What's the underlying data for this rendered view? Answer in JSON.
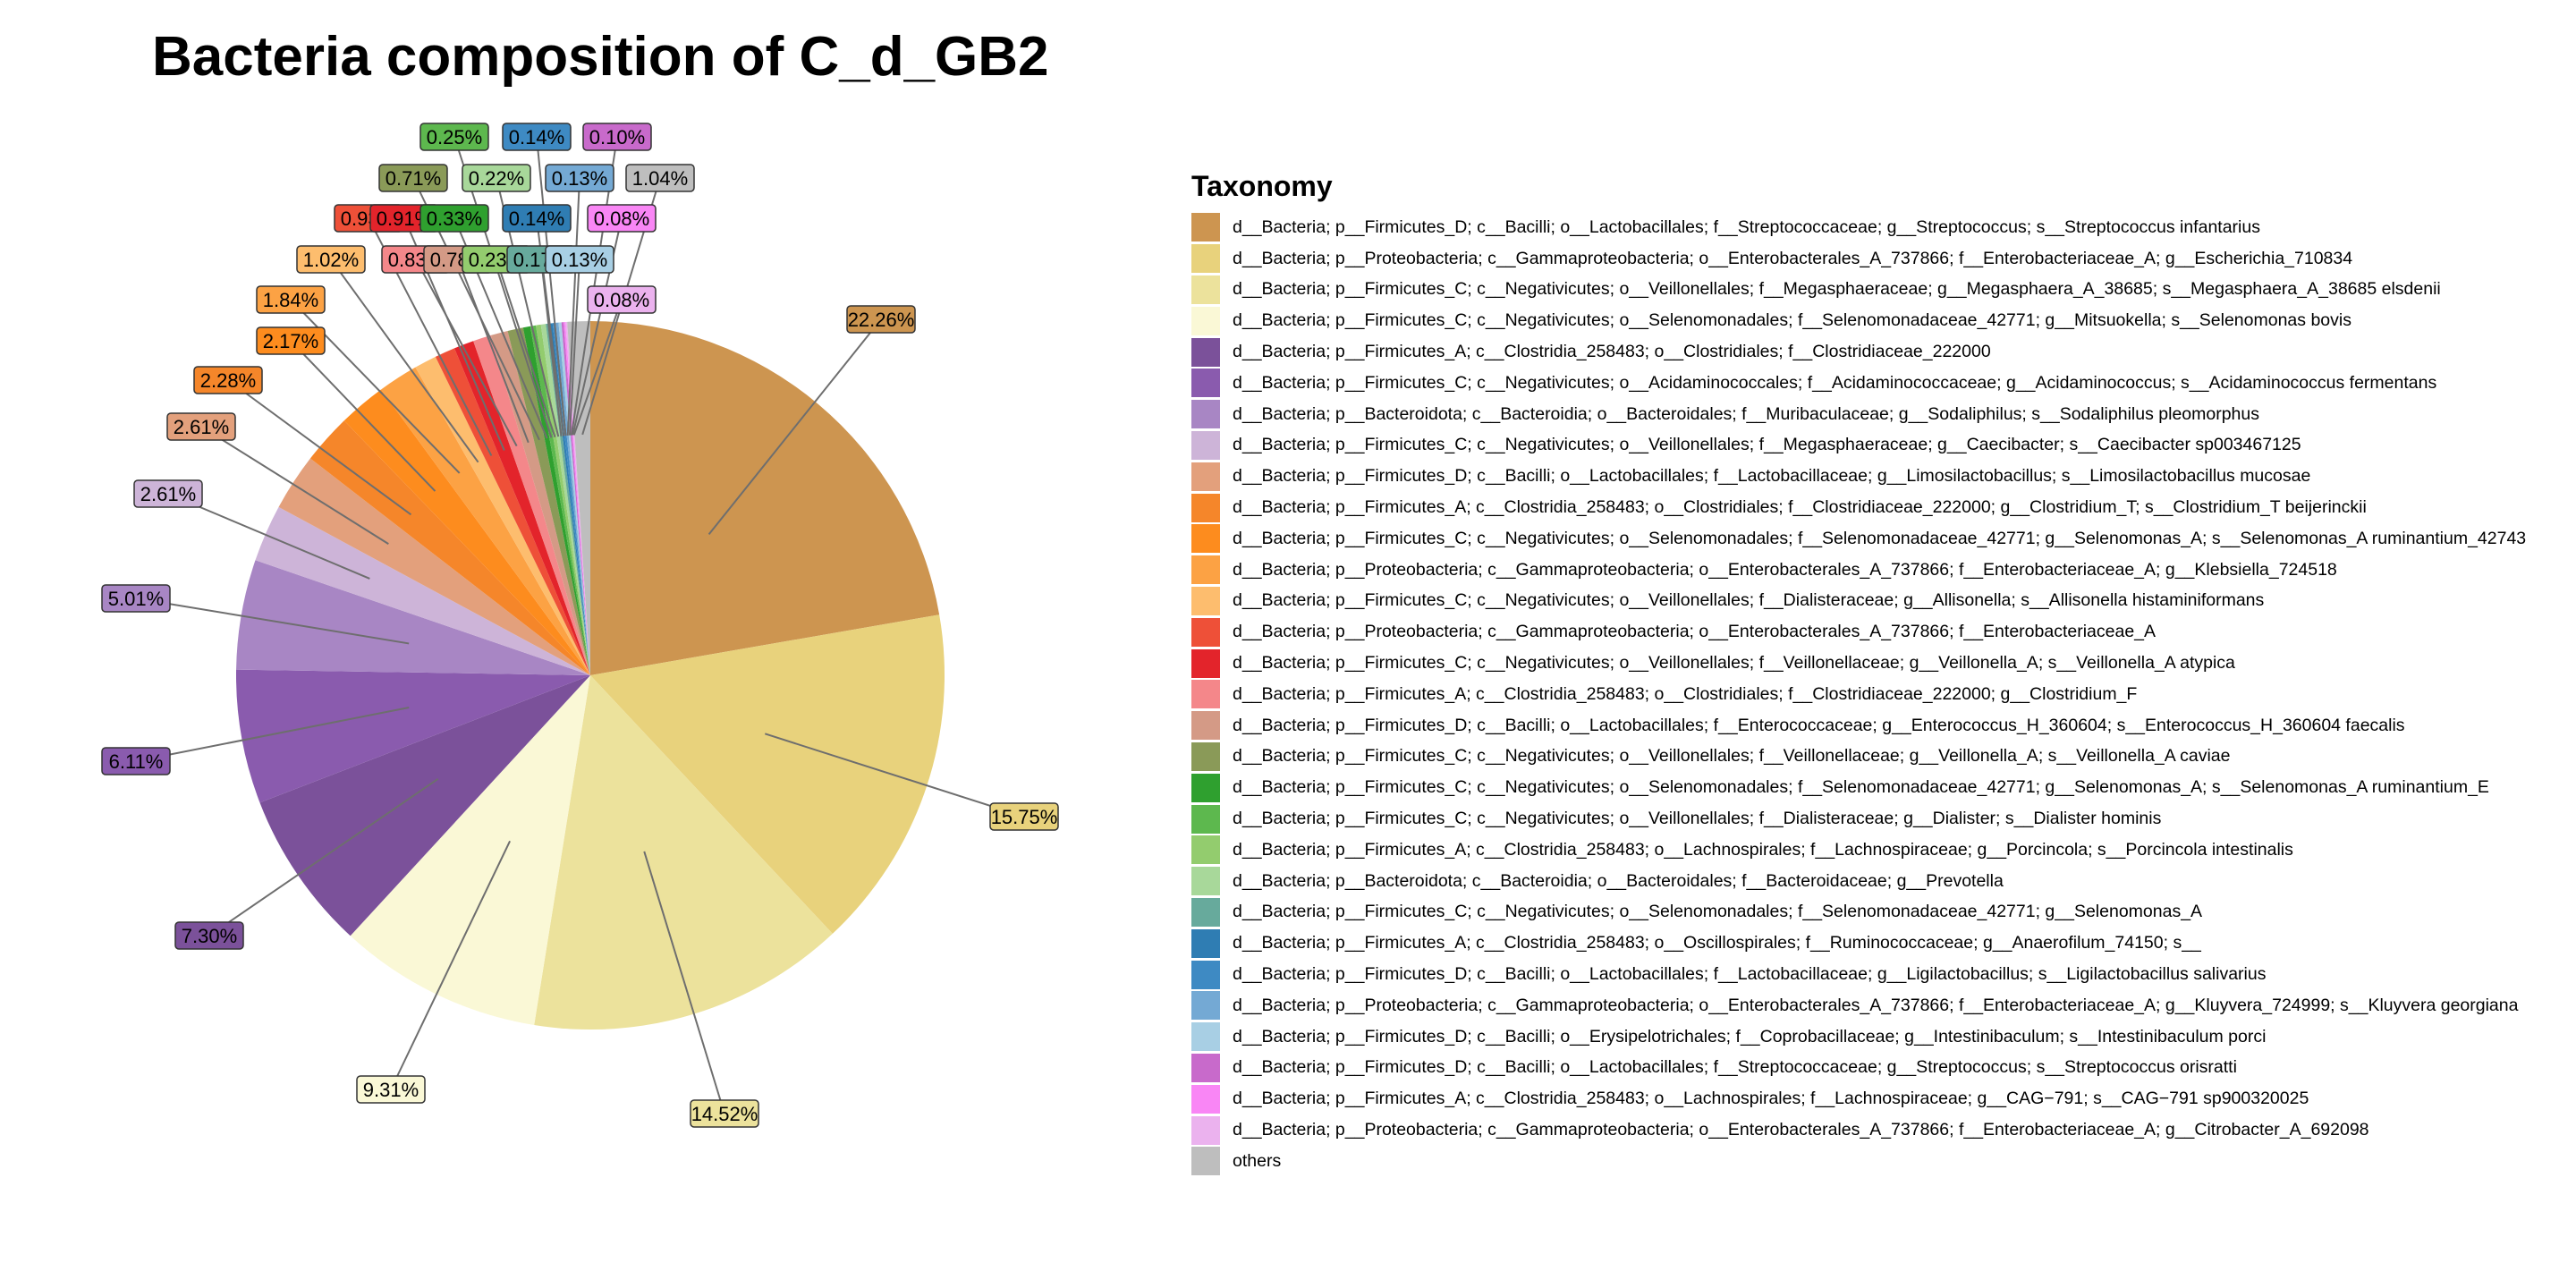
{
  "chart_data": {
    "type": "pie",
    "title": "Bacteria composition of C_d_GB2",
    "legend_title": "Taxonomy",
    "legend_position": "right",
    "slices": [
      {
        "label": "d__Bacteria; p__Firmicutes_D; c__Bacilli; o__Lactobacillales; f__Streptococcaceae; g__Streptococcus; s__Streptococcus infantarius",
        "value": 22.26,
        "pct_label": "22.26%",
        "color": "#CD9550"
      },
      {
        "label": "d__Bacteria; p__Proteobacteria; c__Gammaproteobacteria; o__Enterobacterales_A_737866; f__Enterobacteriaceae_A; g__Escherichia_710834",
        "value": 15.75,
        "pct_label": "15.75%",
        "color": "#E8D27C"
      },
      {
        "label": "d__Bacteria; p__Firmicutes_C; c__Negativicutes; o__Veillonellales; f__Megasphaeraceae; g__Megasphaera_A_38685; s__Megasphaera_A_38685 elsdenii",
        "value": 14.52,
        "pct_label": "14.52%",
        "color": "#ECE29C"
      },
      {
        "label": "d__Bacteria; p__Firmicutes_C; c__Negativicutes; o__Selenomonadales; f__Selenomonadaceae_42771; g__Mitsuokella; s__Selenomonas bovis",
        "value": 9.31,
        "pct_label": "9.31%",
        "color": "#FAF8D6"
      },
      {
        "label": "d__Bacteria; p__Firmicutes_A; c__Clostridia_258483; o__Clostridiales; f__Clostridiaceae_222000",
        "value": 7.3,
        "pct_label": "7.30%",
        "color": "#7B519A"
      },
      {
        "label": "d__Bacteria; p__Firmicutes_C; c__Negativicutes; o__Acidaminococcales; f__Acidaminococcaceae; g__Acidaminococcus; s__Acidaminococcus fermentans",
        "value": 6.11,
        "pct_label": "6.11%",
        "color": "#8A5BAE"
      },
      {
        "label": "d__Bacteria; p__Bacteroidota; c__Bacteroidia; o__Bacteroidales; f__Muribaculaceae; g__Sodaliphilus; s__Sodaliphilus pleomorphus",
        "value": 5.01,
        "pct_label": "5.01%",
        "color": "#A886C4"
      },
      {
        "label": "d__Bacteria; p__Firmicutes_C; c__Negativicutes; o__Veillonellales; f__Megasphaeraceae; g__Caecibacter; s__Caecibacter sp003467125",
        "value": 2.61,
        "pct_label": "2.61%",
        "color": "#CDB4D8"
      },
      {
        "label": "d__Bacteria; p__Firmicutes_D; c__Bacilli; o__Lactobacillales; f__Lactobacillaceae; g__Limosilactobacillus; s__Limosilactobacillus mucosae",
        "value": 2.61,
        "pct_label": "2.61%",
        "color": "#E3A07C"
      },
      {
        "label": "d__Bacteria; p__Firmicutes_A; c__Clostridia_258483; o__Clostridiales; f__Clostridiaceae_222000; g__Clostridium_T; s__Clostridium_T beijerinckii",
        "value": 2.28,
        "pct_label": "2.28%",
        "color": "#F5862A"
      },
      {
        "label": "d__Bacteria; p__Firmicutes_C; c__Negativicutes; o__Selenomonadales; f__Selenomonadaceae_42771; g__Selenomonas_A; s__Selenomonas_A ruminantium_42743",
        "value": 2.17,
        "pct_label": "2.17%",
        "color": "#FD8C1E"
      },
      {
        "label": "d__Bacteria; p__Proteobacteria; c__Gammaproteobacteria; o__Enterobacterales_A_737866; f__Enterobacteriaceae_A; g__Klebsiella_724518",
        "value": 1.84,
        "pct_label": "1.84%",
        "color": "#FCA244"
      },
      {
        "label": "d__Bacteria; p__Firmicutes_C; c__Negativicutes; o__Veillonellales; f__Dialisteraceae; g__Allisonella; s__Allisonella histaminiformans",
        "value": 1.02,
        "pct_label": "1.02%",
        "color": "#FDBD6E"
      },
      {
        "label": "d__Bacteria; p__Proteobacteria; c__Gammaproteobacteria; o__Enterobacterales_A_737866; f__Enterobacteriaceae_A",
        "value": 0.93,
        "pct_label": "0.93%",
        "color": "#EE5038"
      },
      {
        "label": "d__Bacteria; p__Firmicutes_C; c__Negativicutes; o__Veillonellales; f__Veillonellaceae; g__Veillonella_A; s__Veillonella_A atypica",
        "value": 0.91,
        "pct_label": "0.91%",
        "color": "#E3242B"
      },
      {
        "label": "d__Bacteria; p__Firmicutes_A; c__Clostridia_258483; o__Clostridiales; f__Clostridiaceae_222000; g__Clostridium_F",
        "value": 0.83,
        "pct_label": "0.83%",
        "color": "#F4878A"
      },
      {
        "label": "d__Bacteria; p__Firmicutes_D; c__Bacilli; o__Lactobacillales; f__Enterococcaceae; g__Enterococcus_H_360604; s__Enterococcus_H_360604 faecalis",
        "value": 0.78,
        "pct_label": "0.78%",
        "color": "#D49A86"
      },
      {
        "label": "d__Bacteria; p__Firmicutes_C; c__Negativicutes; o__Veillonellales; f__Veillonellaceae; g__Veillonella_A; s__Veillonella_A caviae",
        "value": 0.71,
        "pct_label": "0.71%",
        "color": "#8A9A58"
      },
      {
        "label": "d__Bacteria; p__Firmicutes_C; c__Negativicutes; o__Selenomonadales; f__Selenomonadaceae_42771; g__Selenomonas_A; s__Selenomonas_A ruminantium_E",
        "value": 0.33,
        "pct_label": "0.33%",
        "color": "#2FA02F"
      },
      {
        "label": "d__Bacteria; p__Firmicutes_C; c__Negativicutes; o__Veillonellales; f__Dialisteraceae; g__Dialister; s__Dialister hominis",
        "value": 0.25,
        "pct_label": "0.25%",
        "color": "#5DB84E"
      },
      {
        "label": "d__Bacteria; p__Firmicutes_A; c__Clostridia_258483; o__Lachnospirales; f__Lachnospiraceae; g__Porcincola; s__Porcincola intestinalis",
        "value": 0.23,
        "pct_label": "0.23%",
        "color": "#93CC6E"
      },
      {
        "label": "d__Bacteria; p__Bacteroidota; c__Bacteroidia; o__Bacteroidales; f__Bacteroidaceae; g__Prevotella",
        "value": 0.22,
        "pct_label": "0.22%",
        "color": "#A8D89A"
      },
      {
        "label": "d__Bacteria; p__Firmicutes_C; c__Negativicutes; o__Selenomonadales; f__Selenomonadaceae_42771; g__Selenomonas_A",
        "value": 0.17,
        "pct_label": "0.17%",
        "color": "#67AA9C"
      },
      {
        "label": "d__Bacteria; p__Firmicutes_A; c__Clostridia_258483; o__Oscillospirales; f__Ruminococcaceae; g__Anaerofilum_74150; s__",
        "value": 0.14,
        "pct_label": "0.14%",
        "color": "#2F7DB3"
      },
      {
        "label": "d__Bacteria; p__Firmicutes_D; c__Bacilli; o__Lactobacillales; f__Lactobacillaceae; g__Ligilactobacillus; s__Ligilactobacillus salivarius",
        "value": 0.14,
        "pct_label": "0.14%",
        "color": "#3E8AC3"
      },
      {
        "label": "d__Bacteria; p__Proteobacteria; c__Gammaproteobacteria; o__Enterobacterales_A_737866; f__Enterobacteriaceae_A; g__Kluyvera_724999; s__Kluyvera georgiana",
        "value": 0.13,
        "pct_label": "0.13%",
        "color": "#74A9D4"
      },
      {
        "label": "d__Bacteria; p__Firmicutes_D; c__Bacilli; o__Erysipelotrichales; f__Coprobacillaceae; g__Intestinibaculum; s__Intestinibaculum porci",
        "value": 0.13,
        "pct_label": "0.13%",
        "color": "#A8CFE4"
      },
      {
        "label": "d__Bacteria; p__Firmicutes_D; c__Bacilli; o__Lactobacillales; f__Streptococcaceae; g__Streptococcus; s__Streptococcus orisratti",
        "value": 0.1,
        "pct_label": "0.10%",
        "color": "#C86ACB"
      },
      {
        "label": "d__Bacteria; p__Firmicutes_A; c__Clostridia_258483; o__Lachnospirales; f__Lachnospiraceae; g__CAG−791; s__CAG−791 sp900320025",
        "value": 0.08,
        "pct_label": "0.08%",
        "color": "#F986F5"
      },
      {
        "label": "d__Bacteria; p__Proteobacteria; c__Gammaproteobacteria; o__Enterobacterales_A_737866; f__Enterobacteriaceae_A; g__Citrobacter_A_692098",
        "value": 0.08,
        "pct_label": "0.08%",
        "color": "#EBB2EE"
      },
      {
        "label": "others",
        "value": 1.04,
        "pct_label": "1.04%",
        "color": "#BEBEBE"
      }
    ]
  }
}
